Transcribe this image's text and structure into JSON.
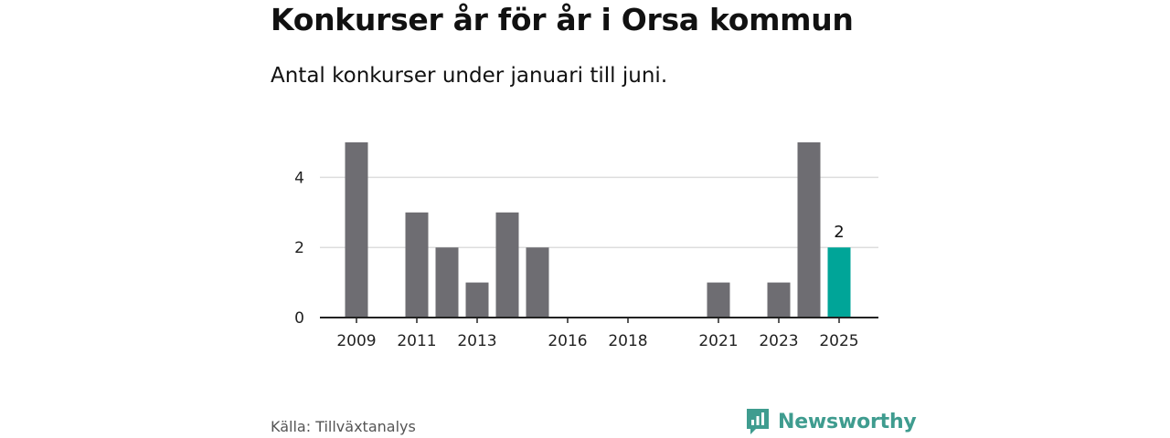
{
  "header": {
    "title": "Konkurser år för år i Orsa kommun",
    "subtitle": "Antal konkurser under januari till juni."
  },
  "footer": {
    "source": "Källa: Tillväxtanalys",
    "brand": "Newsworthy",
    "brand_icon": "newsworthy-logo-icon"
  },
  "colors": {
    "bar": "#6e6d72",
    "highlight": "#00a598",
    "grid": "#dddddd",
    "axis": "#222222",
    "brand": "#3f9c8f"
  },
  "chart_data": {
    "type": "bar",
    "title": "Konkurser år för år i Orsa kommun",
    "subtitle": "Antal konkurser under januari till juni.",
    "xlabel": "",
    "ylabel": "",
    "categories": [
      "2009",
      "2010",
      "2011",
      "2012",
      "2013",
      "2014",
      "2015",
      "2016",
      "2017",
      "2018",
      "2019",
      "2020",
      "2021",
      "2022",
      "2023",
      "2024",
      "2025"
    ],
    "values": [
      5,
      0,
      3,
      2,
      1,
      3,
      2,
      0,
      0,
      0,
      0,
      0,
      1,
      0,
      1,
      5,
      2
    ],
    "x_tick_labels": [
      "2009",
      "2011",
      "2013",
      "2016",
      "2018",
      "2021",
      "2023",
      "2025"
    ],
    "y_ticks": [
      0,
      2,
      4
    ],
    "ylim": [
      0,
      5
    ],
    "grid": true,
    "highlight_category": "2025",
    "data_labels": [
      {
        "category": "2025",
        "text": "2"
      }
    ]
  }
}
